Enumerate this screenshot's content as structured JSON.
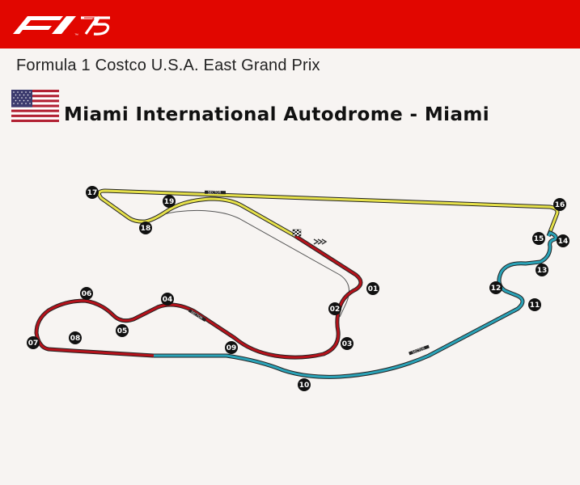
{
  "header": {
    "logo_text": "F1",
    "logo_icon": "f1-75-logo-icon",
    "accent_color": "#e10600"
  },
  "event": {
    "title": "Formula 1 Costco U.S.A. East Grand Prix"
  },
  "circuit": {
    "name": "Miami International  Autodrome - Miami",
    "flag_icon": "usa-flag-icon"
  },
  "track": {
    "sector_colors": {
      "sector1": "#b5121b",
      "sector2": "#2aa3b8",
      "sector3": "#e6e14a"
    },
    "sector_label": "SECTOR",
    "turns": [
      {
        "label": "01"
      },
      {
        "label": "02"
      },
      {
        "label": "03"
      },
      {
        "label": "04"
      },
      {
        "label": "05"
      },
      {
        "label": "06"
      },
      {
        "label": "07"
      },
      {
        "label": "08"
      },
      {
        "label": "09"
      },
      {
        "label": "10"
      },
      {
        "label": "11"
      },
      {
        "label": "12"
      },
      {
        "label": "13"
      },
      {
        "label": "14"
      },
      {
        "label": "15"
      },
      {
        "label": "16"
      },
      {
        "label": "17"
      },
      {
        "label": "18"
      },
      {
        "label": "19"
      }
    ]
  }
}
